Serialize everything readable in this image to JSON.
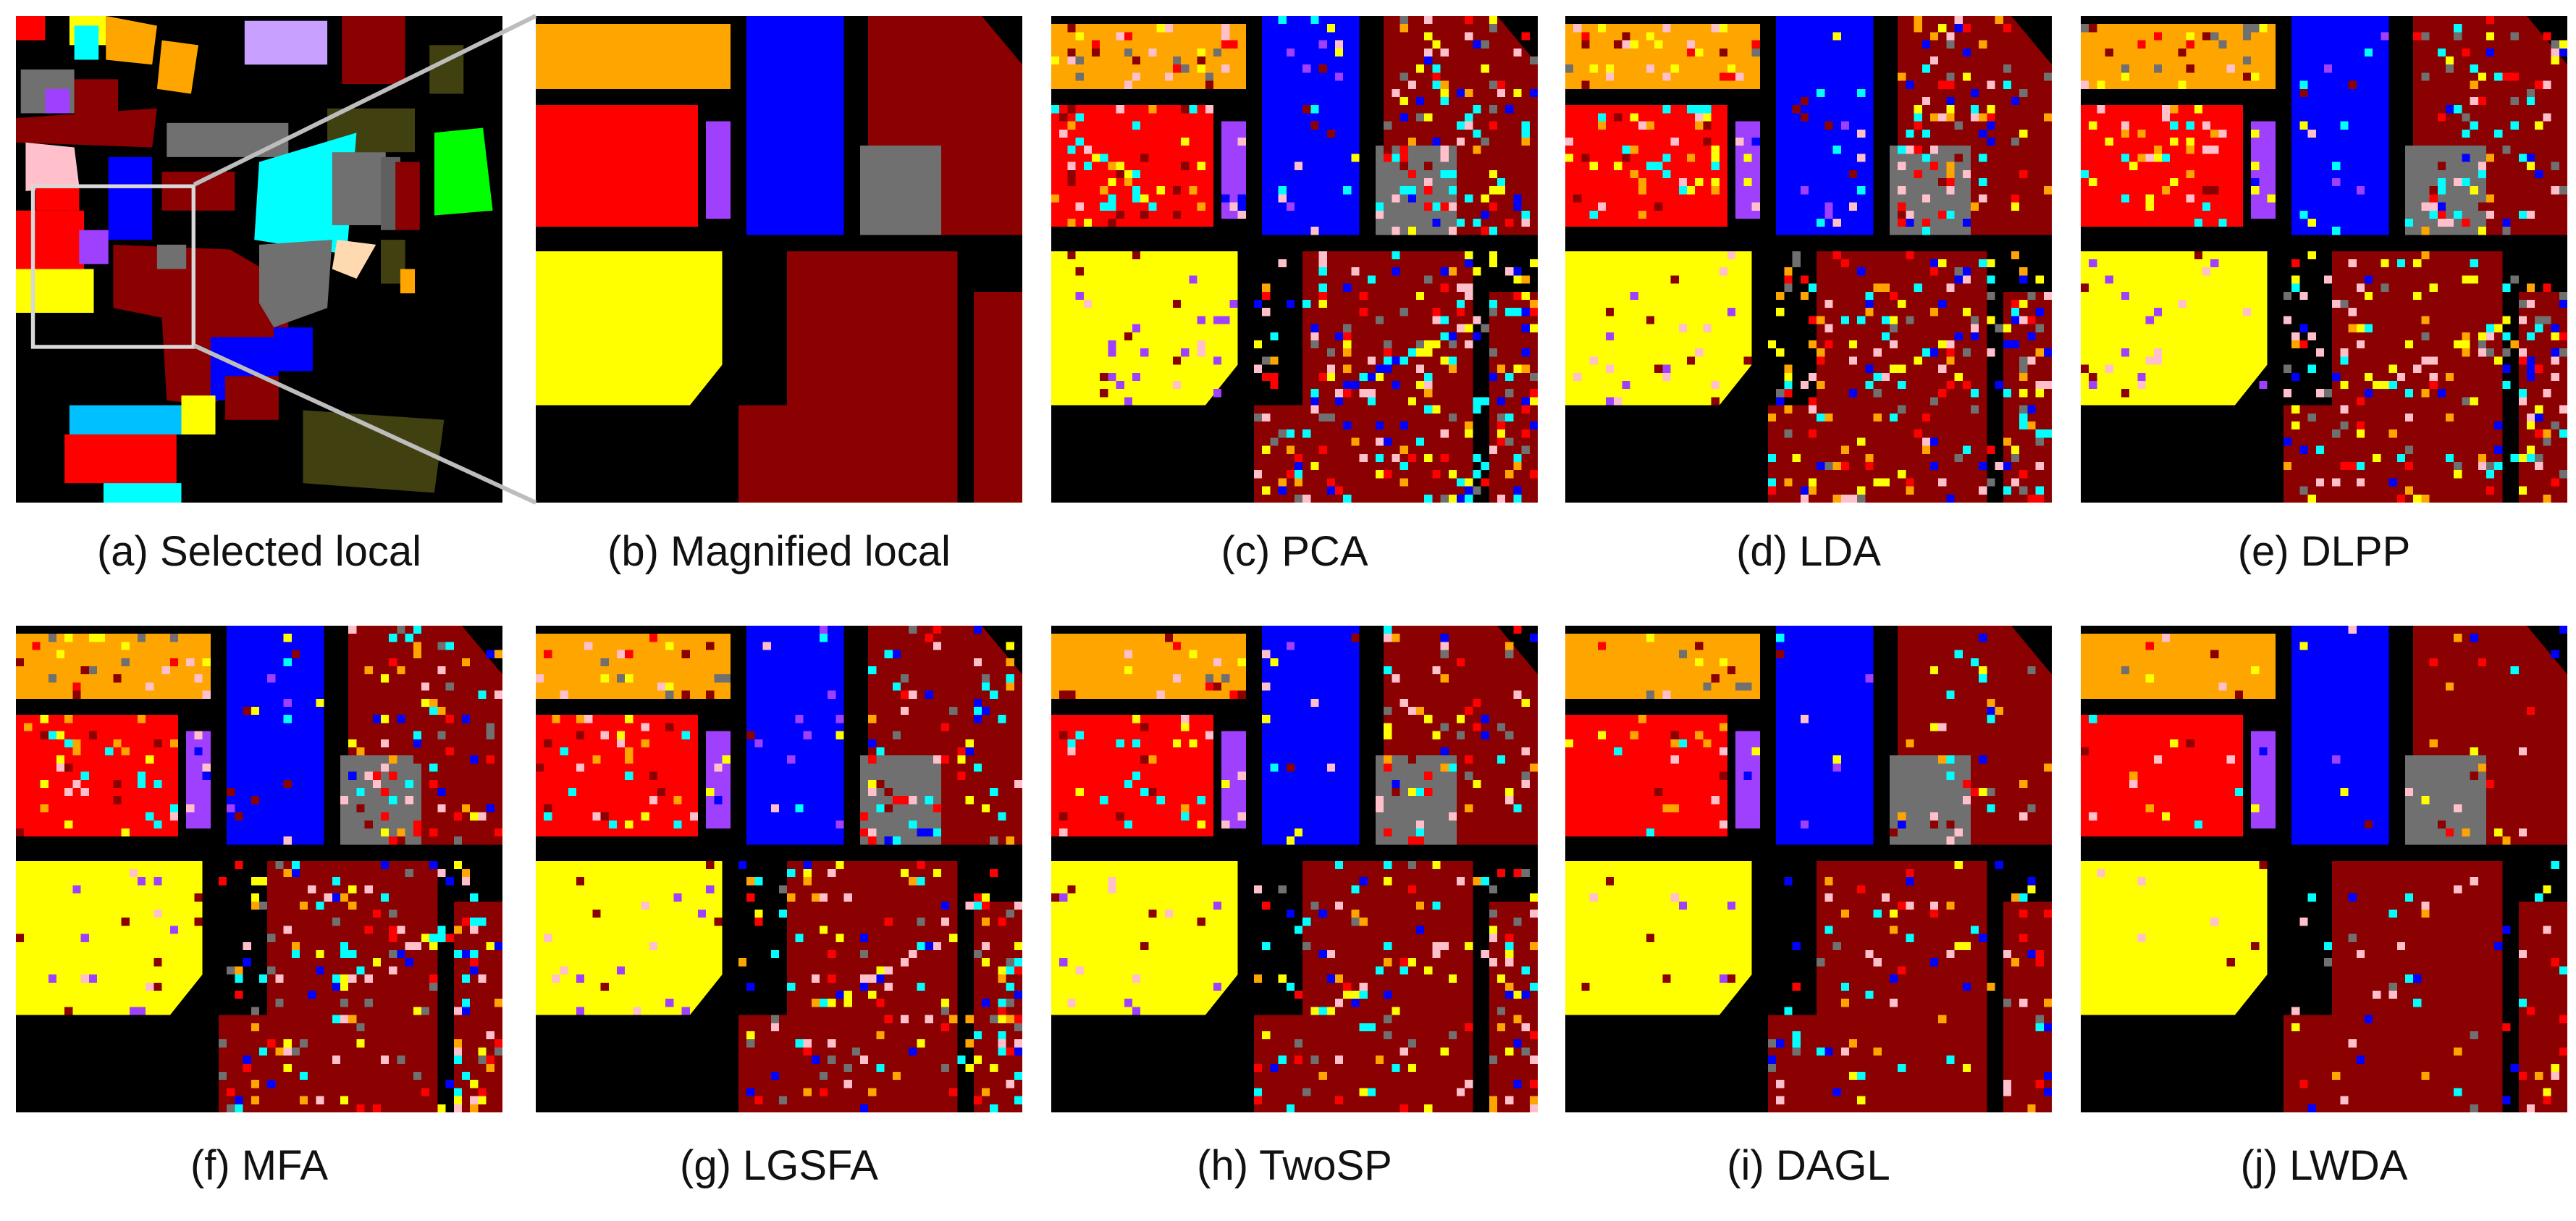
{
  "figure": {
    "panels": [
      {
        "id": "a",
        "caption": "(a) Selected local",
        "kind": "overview"
      },
      {
        "id": "b",
        "caption": "(b) Magnified local",
        "kind": "groundtruth"
      },
      {
        "id": "c",
        "caption": "(c) PCA",
        "kind": "classmap",
        "noise": 0.34
      },
      {
        "id": "d",
        "caption": "(d) LDA",
        "kind": "classmap",
        "noise": 0.3
      },
      {
        "id": "e",
        "caption": "(e) DLPP",
        "kind": "classmap",
        "noise": 0.27
      },
      {
        "id": "f",
        "caption": "(f) MFA",
        "kind": "classmap",
        "noise": 0.24
      },
      {
        "id": "g",
        "caption": "(g) LGSFA",
        "kind": "classmap",
        "noise": 0.22
      },
      {
        "id": "h",
        "caption": "(h) TwoSP",
        "kind": "classmap",
        "noise": 0.2
      },
      {
        "id": "i",
        "caption": "(i) DAGL",
        "kind": "classmap",
        "noise": 0.12
      },
      {
        "id": "j",
        "caption": "(j) LWDA",
        "kind": "classmap",
        "noise": 0.08
      }
    ],
    "palette": {
      "background": "#000000",
      "dark-red": "#8b0000",
      "red": "#ff0000",
      "orange": "#ffa500",
      "yellow": "#ffff00",
      "blue": "#0000ff",
      "gray": "#707070",
      "cyan": "#00ffff",
      "violet": "#a040ff",
      "pink": "#ffc0cb",
      "green": "#00ff00",
      "olive": "#404010",
      "lilac": "#c8a0ff",
      "light-blue": "#00c0ff",
      "peach": "#ffdab0",
      "dim-gray": "#606060"
    }
  }
}
